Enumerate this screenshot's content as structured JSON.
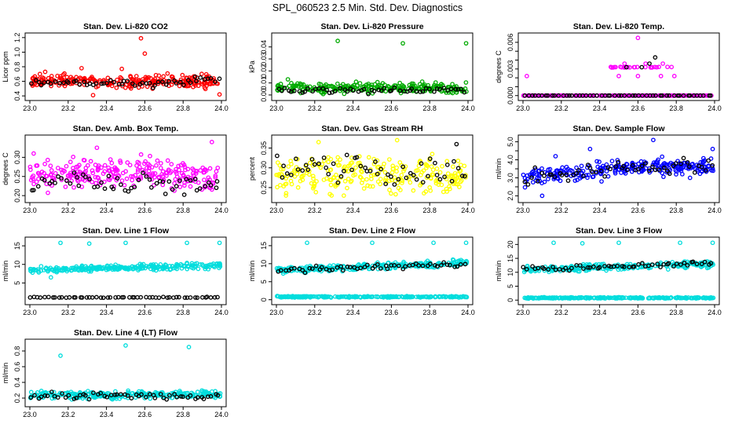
{
  "figure": {
    "title": "SPL_060523  2.5 Min. Std. Dev. Diagnostics"
  },
  "chart_data": [
    {
      "type": "scatter",
      "title": "Stan. Dev. Li-820 CO2",
      "ylabel": "Licor ppm",
      "color": "#ff0000",
      "xlim": [
        23.0,
        24.0
      ],
      "ylim": [
        0.38,
        1.22
      ],
      "xticks": [
        "23.0",
        "23.2",
        "23.4",
        "23.6",
        "23.8",
        "24.0"
      ],
      "yticks": [
        0.4,
        0.6,
        0.8,
        1.0,
        1.2
      ],
      "ytick_labels": [
        "0.4",
        "0.6",
        "0.8",
        "1.0",
        "1.2"
      ],
      "series": [
        {
          "name": "main",
          "color": "#ff0000",
          "band": {
            "center": 0.6,
            "spread": 0.06
          },
          "outliers": [
            [
              23.58,
              1.19
            ],
            [
              23.6,
              0.98
            ],
            [
              23.08,
              0.73
            ],
            [
              23.27,
              0.78
            ],
            [
              23.48,
              0.77
            ],
            [
              23.99,
              0.42
            ],
            [
              23.33,
              0.41
            ]
          ]
        },
        {
          "name": "overlay",
          "color": "#000000",
          "band": {
            "center": 0.58,
            "spread": 0.05
          },
          "outliers": []
        }
      ]
    },
    {
      "type": "scatter",
      "title": "Stan. Dev. Li-820 Pressure",
      "ylabel": "kPa",
      "color": "#00aa00",
      "xlim": [
        23.0,
        24.0
      ],
      "ylim": [
        -0.002,
        0.049
      ],
      "xticks": [
        "23.0",
        "23.2",
        "23.4",
        "23.6",
        "23.8",
        "24.0"
      ],
      "yticks": [
        0.0,
        0.01,
        0.02,
        0.03,
        0.04
      ],
      "ytick_labels": [
        "0.00",
        "0.01",
        "0.02",
        "0.03",
        "0.04"
      ],
      "series": [
        {
          "name": "main",
          "color": "#00aa00",
          "band": {
            "center": 0.006,
            "spread": 0.003
          },
          "outliers": [
            [
              23.32,
              0.045
            ],
            [
              23.66,
              0.043
            ],
            [
              23.99,
              0.043
            ],
            [
              23.06,
              0.013
            ]
          ]
        },
        {
          "name": "overlay",
          "color": "#000000",
          "band": {
            "center": 0.004,
            "spread": 0.002
          },
          "outliers": []
        }
      ]
    },
    {
      "type": "scatter",
      "title": "Stan. Dev. Li-820 Temp.",
      "ylabel": "degrees C",
      "color": "#ff00ff",
      "xlim": [
        23.0,
        24.0
      ],
      "ylim": [
        -0.0002,
        0.0067
      ],
      "xticks": [
        "23.0",
        "23.2",
        "23.4",
        "23.6",
        "23.8",
        "24.0"
      ],
      "yticks": [
        0.0,
        0.001,
        0.002,
        0.003,
        0.004,
        0.005,
        0.006
      ],
      "ytick_labels": [
        "0.000",
        "",
        "",
        "0.003",
        "",
        "",
        "0.006"
      ],
      "series": [
        {
          "name": "main",
          "color": "#ff00ff",
          "band": {
            "center": 0.0,
            "spread": 0.0
          },
          "outliers": [
            [
              23.02,
              0.0022
            ],
            [
              23.6,
              0.0065
            ],
            [
              23.53,
              0.0036
            ],
            [
              23.5,
              0.0022
            ],
            [
              23.6,
              0.0022
            ],
            [
              23.72,
              0.0022
            ],
            [
              23.79,
              0.0022
            ],
            [
              23.73,
              0.0036
            ],
            [
              23.64,
              0.0036
            ]
          ],
          "cluster": {
            "x": [
              23.45,
              23.78
            ],
            "y": 0.0032
          }
        },
        {
          "name": "overlay",
          "color": "#000000",
          "band": {
            "center": 0.0,
            "spread": 0.0
          },
          "outliers": [
            [
              23.54,
              0.0032
            ],
            [
              23.62,
              0.0032
            ],
            [
              23.66,
              0.0036
            ],
            [
              23.69,
              0.0043
            ]
          ]
        }
      ]
    },
    {
      "type": "scatter",
      "title": "Stan. Dev. Amb. Box Temp.",
      "ylabel": "degrees C",
      "color": "#ff00ff",
      "xlim": [
        23.0,
        24.0
      ],
      "ylim": [
        0.19,
        0.35
      ],
      "xticks": [
        "23.0",
        "23.2",
        "23.4",
        "23.6",
        "23.8",
        "24.0"
      ],
      "yticks": [
        0.2,
        0.25,
        0.3
      ],
      "ytick_labels": [
        "0.20",
        "0.25",
        "0.30"
      ],
      "series": [
        {
          "name": "main",
          "color": "#ff00ff",
          "band": {
            "center": 0.255,
            "spread": 0.03
          },
          "outliers": [
            [
              23.95,
              0.34
            ],
            [
              23.35,
              0.325
            ],
            [
              23.02,
              0.31
            ]
          ]
        },
        {
          "name": "overlay",
          "color": "#000000",
          "band": {
            "center": 0.23,
            "spread": 0.02
          },
          "outliers": []
        }
      ]
    },
    {
      "type": "scatter",
      "title": "Stan. Dev. Gas Stream RH",
      "ylabel": "percent",
      "color": "#ffff00",
      "xlim": [
        23.0,
        24.0
      ],
      "ylim": [
        0.22,
        0.375
      ],
      "xticks": [
        "23.0",
        "23.2",
        "23.4",
        "23.6",
        "23.8",
        "24.0"
      ],
      "yticks": [
        0.25,
        0.3,
        0.35
      ],
      "ytick_labels": [
        "0.25",
        "0.30",
        "0.35"
      ],
      "series": [
        {
          "name": "main",
          "color": "#ffff00",
          "band": {
            "center": 0.285,
            "spread": 0.035
          },
          "outliers": [
            [
              23.22,
              0.365
            ],
            [
              23.63,
              0.37
            ],
            [
              23.05,
              0.23
            ],
            [
              23.89,
              0.24
            ]
          ]
        },
        {
          "name": "overlay",
          "color": "#000000",
          "band": {
            "center": 0.29,
            "spread": 0.035
          },
          "outliers": [
            [
              23.94,
              0.36
            ]
          ]
        }
      ]
    },
    {
      "type": "scatter",
      "title": "Stan. Dev. Sample Flow",
      "ylabel": "ml/min",
      "color": "#0000ff",
      "xlim": [
        23.0,
        24.0
      ],
      "ylim": [
        1.8,
        5.2
      ],
      "xticks": [
        "23.0",
        "23.2",
        "23.4",
        "23.6",
        "23.8",
        "24.0"
      ],
      "yticks": [
        2.0,
        2.5,
        3.0,
        3.5,
        4.0,
        4.5,
        5.0
      ],
      "ytick_labels": [
        "2.0",
        "",
        "3.0",
        "",
        "4.0",
        "",
        "5.0"
      ],
      "series": [
        {
          "name": "main",
          "color": "#0000ff",
          "band": {
            "center": 3.4,
            "spread": 0.35
          },
          "outliers": [
            [
              23.35,
              4.6
            ],
            [
              23.68,
              5.1
            ],
            [
              23.99,
              4.6
            ],
            [
              23.1,
              2.0
            ],
            [
              23.41,
              2.8
            ],
            [
              23.17,
              4.2
            ]
          ]
        },
        {
          "name": "overlay",
          "color": "#000000",
          "band": {
            "center": 3.4,
            "spread": 0.3
          },
          "outliers": []
        }
      ]
    },
    {
      "type": "scatter",
      "title": "Stan. Dev. Line 1 Flow",
      "ylabel": "ml/min",
      "color": "#00dddd",
      "xlim": [
        23.0,
        24.0
      ],
      "ylim": [
        0,
        16.5
      ],
      "xticks": [
        "23.0",
        "23.2",
        "23.4",
        "23.6",
        "23.8",
        "24.0"
      ],
      "yticks": [
        5,
        10,
        15
      ],
      "ytick_labels": [
        "5",
        "10",
        "15"
      ],
      "series": [
        {
          "name": "main",
          "color": "#00dddd",
          "band": {
            "center": 9.0,
            "spread": 0.6
          },
          "outliers": [
            [
              23.16,
              15.8
            ],
            [
              23.5,
              15.8
            ],
            [
              23.82,
              15.8
            ],
            [
              23.99,
              15.8
            ],
            [
              23.31,
              15.6
            ],
            [
              23.11,
              6.5
            ]
          ]
        },
        {
          "name": "overlay",
          "color": "#000000",
          "band": {
            "center": 1.1,
            "spread": 0.08
          },
          "outliers": []
        }
      ]
    },
    {
      "type": "scatter",
      "title": "Stan. Dev. Line 2 Flow",
      "ylabel": "ml/min",
      "color": "#00dddd",
      "xlim": [
        23.0,
        24.0
      ],
      "ylim": [
        -0.5,
        16.5
      ],
      "xticks": [
        "23.0",
        "23.2",
        "23.4",
        "23.6",
        "23.8",
        "24.0"
      ],
      "yticks": [
        0,
        5,
        10,
        15
      ],
      "ytick_labels": [
        "0",
        "5",
        "10",
        "15"
      ],
      "series": [
        {
          "name": "main",
          "color": "#00dddd",
          "band": {
            "center": 0.8,
            "spread": 0.15
          },
          "outliers": [
            [
              23.16,
              15.8
            ],
            [
              23.5,
              15.8
            ],
            [
              23.82,
              15.8
            ],
            [
              23.99,
              15.8
            ]
          ]
        },
        {
          "name": "main2",
          "color": "#00dddd",
          "band": {
            "center": 9.2,
            "spread": 0.7
          },
          "outliers": []
        },
        {
          "name": "overlay",
          "color": "#000000",
          "band": {
            "center": 9.0,
            "spread": 0.6
          },
          "outliers": []
        }
      ]
    },
    {
      "type": "scatter",
      "title": "Stan. Dev. Line 3 Flow",
      "ylabel": "ml/min",
      "color": "#00dddd",
      "xlim": [
        23.0,
        24.0
      ],
      "ylim": [
        -0.5,
        21.5
      ],
      "xticks": [
        "23.0",
        "23.2",
        "23.4",
        "23.6",
        "23.8",
        "24.0"
      ],
      "yticks": [
        0,
        5,
        10,
        15,
        20
      ],
      "ytick_labels": [
        "0",
        "5",
        "10",
        "15",
        "20"
      ],
      "series": [
        {
          "name": "main",
          "color": "#00dddd",
          "band": {
            "center": 0.8,
            "spread": 0.15
          },
          "outliers": [
            [
              23.16,
              20.6
            ],
            [
              23.5,
              20.6
            ],
            [
              23.82,
              20.6
            ],
            [
              23.99,
              20.6
            ],
            [
              23.31,
              20.4
            ]
          ]
        },
        {
          "name": "main2",
          "color": "#00dddd",
          "band": {
            "center": 12.0,
            "spread": 0.9
          },
          "outliers": []
        },
        {
          "name": "overlay",
          "color": "#000000",
          "band": {
            "center": 12.2,
            "spread": 0.6
          },
          "outliers": []
        }
      ]
    },
    {
      "type": "scatter",
      "title": "Stan. Dev. Line 4 (LT) Flow",
      "ylabel": "ml/min",
      "color": "#00dddd",
      "xlim": [
        23.0,
        24.0
      ],
      "ylim": [
        0.13,
        0.91
      ],
      "xticks": [
        "23.0",
        "23.2",
        "23.4",
        "23.6",
        "23.8",
        "24.0"
      ],
      "yticks": [
        0.2,
        0.4,
        0.6,
        0.8
      ],
      "ytick_labels": [
        "0.2",
        "0.4",
        "0.6",
        "0.8"
      ],
      "series": [
        {
          "name": "main",
          "color": "#00dddd",
          "band": {
            "center": 0.24,
            "spread": 0.035
          },
          "outliers": [
            [
              23.16,
              0.74
            ],
            [
              23.5,
              0.87
            ],
            [
              23.83,
              0.85
            ]
          ]
        },
        {
          "name": "overlay",
          "color": "#000000",
          "band": {
            "center": 0.23,
            "spread": 0.03
          },
          "outliers": []
        }
      ]
    }
  ]
}
